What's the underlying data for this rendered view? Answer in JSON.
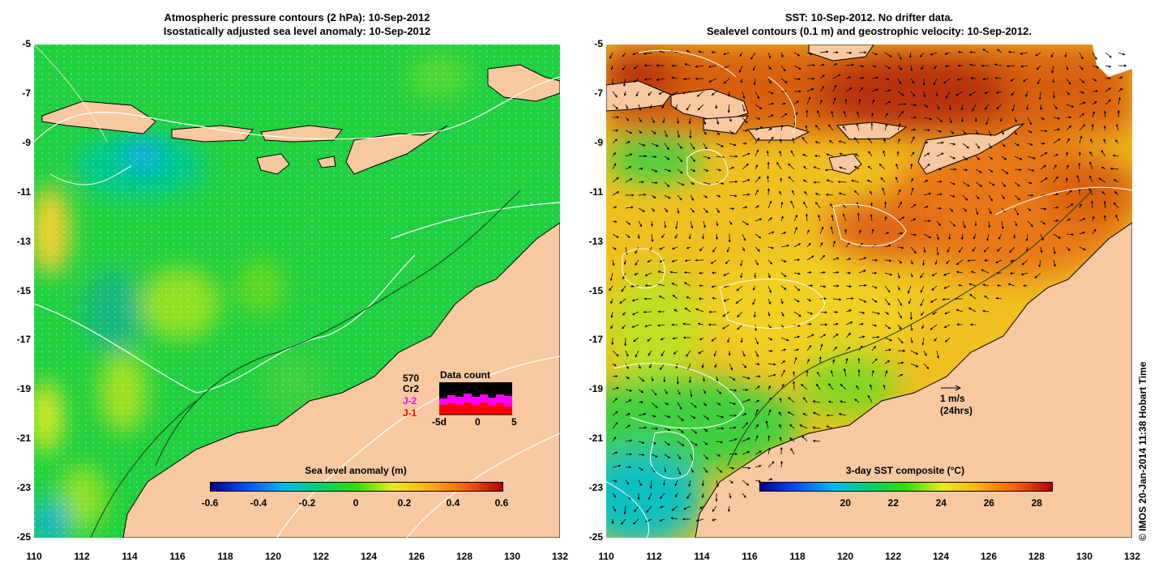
{
  "left_panel": {
    "title_line1": "Atmospheric pressure contours (2 hPa): 10-Sep-2012",
    "title_line2": "Isostatically adjusted sea level anomaly: 10-Sep-2012",
    "colorbar_label": "Sea level anomaly (m)",
    "colorbar_ticks": [
      "-0.6",
      "-0.4",
      "-0.2",
      "0",
      "0.2",
      "0.4",
      "0.6"
    ],
    "inset": {
      "count": "570",
      "title": "Data count",
      "series": [
        {
          "name": "Cr2",
          "color": "#000000"
        },
        {
          "name": "J-2",
          "color": "#ff00ff"
        },
        {
          "name": "J-1",
          "color": "#ff0000"
        }
      ],
      "x_ticks": [
        "-5d",
        "0",
        "5"
      ]
    }
  },
  "right_panel": {
    "title_line1": "SST: 10-Sep-2012. No drifter data.",
    "title_line2": "Sealevel contours (0.1 m) and geostrophic velocity: 10-Sep-2012.",
    "colorbar_label": "3-day SST composite (°C)",
    "colorbar_ticks": [
      "20",
      "22",
      "24",
      "26",
      "28"
    ],
    "scale_label_1": "1 m/s",
    "scale_label_2": "(24hrs)"
  },
  "axes": {
    "lon_ticks": [
      "110",
      "112",
      "114",
      "116",
      "118",
      "120",
      "122",
      "124",
      "126",
      "128",
      "130",
      "132"
    ],
    "lat_ticks": [
      "-5",
      "-7",
      "-9",
      "-11",
      "-13",
      "-15",
      "-17",
      "-19",
      "-21",
      "-23",
      "-25"
    ],
    "lon_range": [
      110,
      132
    ],
    "lat_range": [
      -25,
      -5
    ]
  },
  "colors": {
    "land": "#f8c8a0",
    "sla_scale": [
      "#00008b",
      "#0060ff",
      "#00c0e0",
      "#00d060",
      "#40e000",
      "#e8f000",
      "#ffb000",
      "#ff6000",
      "#b00000"
    ],
    "sst_scale": [
      "#00008b",
      "#0060ff",
      "#00c0e0",
      "#00d060",
      "#40e000",
      "#e8f000",
      "#ffb000",
      "#ff6000",
      "#b00000"
    ]
  },
  "copyright": "© IMOS 20-Jan-2014 11:38 Hobart Time"
}
